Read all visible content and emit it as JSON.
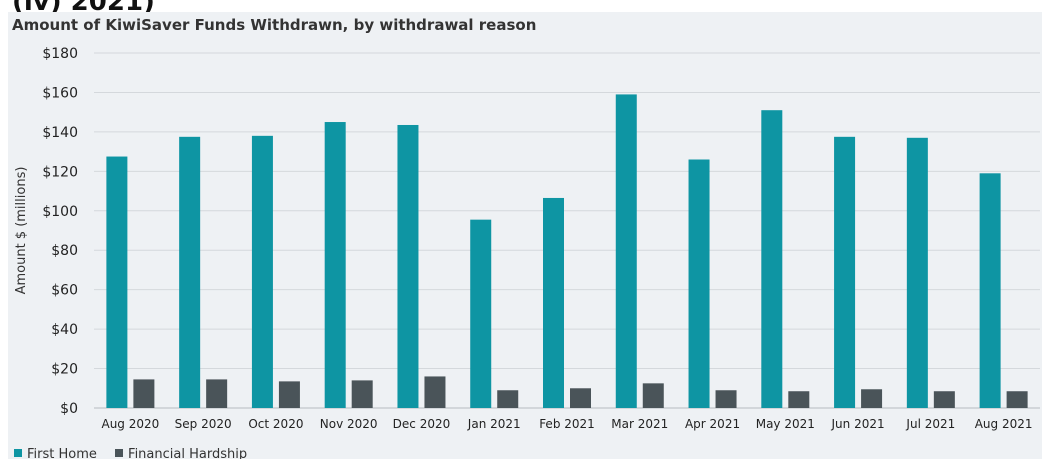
{
  "page_heading_cut": "(iv) 2021)",
  "chart_data": {
    "type": "bar",
    "title": "Amount of KiwiSaver Funds Withdrawn, by withdrawal reason",
    "ylabel": "Amount $ (millions)",
    "xlabel": "",
    "ylim": [
      0,
      180
    ],
    "yticks": [
      0,
      20,
      40,
      60,
      80,
      100,
      120,
      140,
      160,
      180
    ],
    "ytick_labels": [
      "$0",
      "$20",
      "$40",
      "$60",
      "$80",
      "$100",
      "$120",
      "$140",
      "$160",
      "$180"
    ],
    "grid": true,
    "legend_position": "bottom-left",
    "categories": [
      "Aug 2020",
      "Sep 2020",
      "Oct 2020",
      "Nov 2020",
      "Dec 2020",
      "Jan 2021",
      "Feb 2021",
      "Mar 2021",
      "Apr 2021",
      "May 2021",
      "Jun 2021",
      "Jul 2021",
      "Aug 2021"
    ],
    "series": [
      {
        "name": "First Home",
        "color": "#0e95a3",
        "values": [
          127.5,
          137.5,
          138,
          145,
          143.5,
          95.5,
          106.5,
          159,
          126,
          151,
          137.5,
          137,
          119
        ]
      },
      {
        "name": "Financial Hardship",
        "color": "#4a5459",
        "values": [
          14.5,
          14.5,
          13.5,
          14,
          16,
          9,
          10,
          12.5,
          9,
          8.5,
          9.5,
          8.5,
          8.5
        ]
      }
    ]
  }
}
